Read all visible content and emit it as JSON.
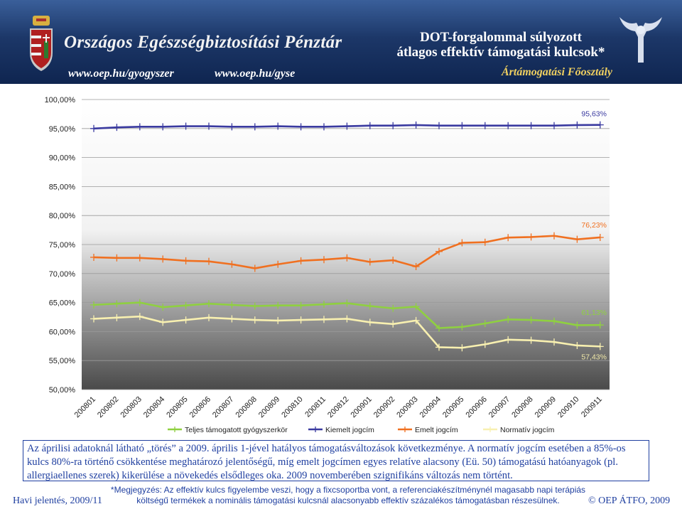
{
  "header": {
    "org_name": "Országos Egészségbiztosítási Pénztár",
    "url1": "www.oep.hu/gyogyszer",
    "url2": "www.oep.hu/gyse",
    "subtitle_line1": "DOT-forgalommal súlyozott",
    "subtitle_line2": "átlagos effektív támogatási kulcsok*",
    "department": "Ártámogatási Főosztály"
  },
  "chart_data": {
    "type": "line",
    "x": [
      "200801",
      "200802",
      "200803",
      "200804",
      "200805",
      "200806",
      "200807",
      "200808",
      "200809",
      "200810",
      "200811",
      "200812",
      "200901",
      "200902",
      "200903",
      "200904",
      "200905",
      "200906",
      "200907",
      "200908",
      "200909",
      "200910",
      "200911"
    ],
    "ylim": [
      50,
      100
    ],
    "yticks": [
      "50,00%",
      "55,00%",
      "60,00%",
      "65,00%",
      "70,00%",
      "75,00%",
      "80,00%",
      "85,00%",
      "90,00%",
      "95,00%",
      "100,00%"
    ],
    "grid": true,
    "legend_position": "bottom",
    "series": [
      {
        "name": "Teljes támogatott gyógyszerkör",
        "color": "#8fd040",
        "values": [
          64.6,
          64.8,
          65.0,
          64.2,
          64.5,
          64.8,
          64.6,
          64.4,
          64.5,
          64.5,
          64.7,
          64.9,
          64.4,
          64.0,
          64.3,
          60.6,
          60.8,
          61.4,
          62.1,
          62.0,
          61.8,
          61.1,
          61.13
        ],
        "end_label": "61,13%"
      },
      {
        "name": "Kiemelt jogcím",
        "color": "#3a3aa0",
        "values": [
          95.0,
          95.2,
          95.3,
          95.3,
          95.4,
          95.4,
          95.3,
          95.3,
          95.4,
          95.3,
          95.3,
          95.4,
          95.5,
          95.5,
          95.6,
          95.5,
          95.5,
          95.5,
          95.5,
          95.5,
          95.5,
          95.6,
          95.63
        ],
        "end_label": "95,63%"
      },
      {
        "name": "Emelt jogcím",
        "color": "#f07020",
        "values": [
          72.8,
          72.7,
          72.7,
          72.5,
          72.2,
          72.1,
          71.6,
          70.9,
          71.6,
          72.2,
          72.4,
          72.7,
          72.0,
          72.3,
          71.2,
          73.8,
          75.3,
          75.4,
          76.2,
          76.3,
          76.5,
          75.9,
          76.23
        ],
        "end_label": "76,23%"
      },
      {
        "name": "Normatív jogcím",
        "color": "#f8f0b0",
        "values": [
          62.2,
          62.4,
          62.6,
          61.6,
          62.0,
          62.4,
          62.2,
          62.0,
          61.9,
          62.0,
          62.1,
          62.2,
          61.6,
          61.3,
          61.9,
          57.3,
          57.2,
          57.8,
          58.6,
          58.5,
          58.2,
          57.6,
          57.43
        ],
        "end_label": "57,43%"
      }
    ]
  },
  "notes": {
    "main": "Az áprilisi adatoknál látható „törés” a 2009. április 1-jével hatályos támogatásváltozások következménye. A normatív jogcím esetében a 85%-os kulcs 80%-ra történő csökkentése meghatározó jelentőségű, míg emelt jogcímen egyes relatíve alacsony (Eü. 50) támogatású hatóanyagok (pl. allergiaellenes szerek) kikerülése a növekedés elsődleges oka. 2009 novemberében szignifikáns változás nem történt.",
    "footnote_line1": "*Megjegyzés: Az effektív kulcs figyelembe veszi, hogy a fixcsoportba vont, a referenciakészítménynél magasabb napi terápiás",
    "footnote_line2": "költségű termékek a nominális támogatási kulcsnál alacsonyabb effektív százalékos támogatásban részesülnek."
  },
  "footer": {
    "left": "Havi jelentés, 2009/11",
    "right": "© OEP ÁTFO, 2009"
  },
  "colors": {
    "header_bg": "#1c3768",
    "plot_gradient_top": "#ffffff",
    "plot_gradient_bottom": "#4a4a4a",
    "note_text": "#1f3fa0"
  }
}
